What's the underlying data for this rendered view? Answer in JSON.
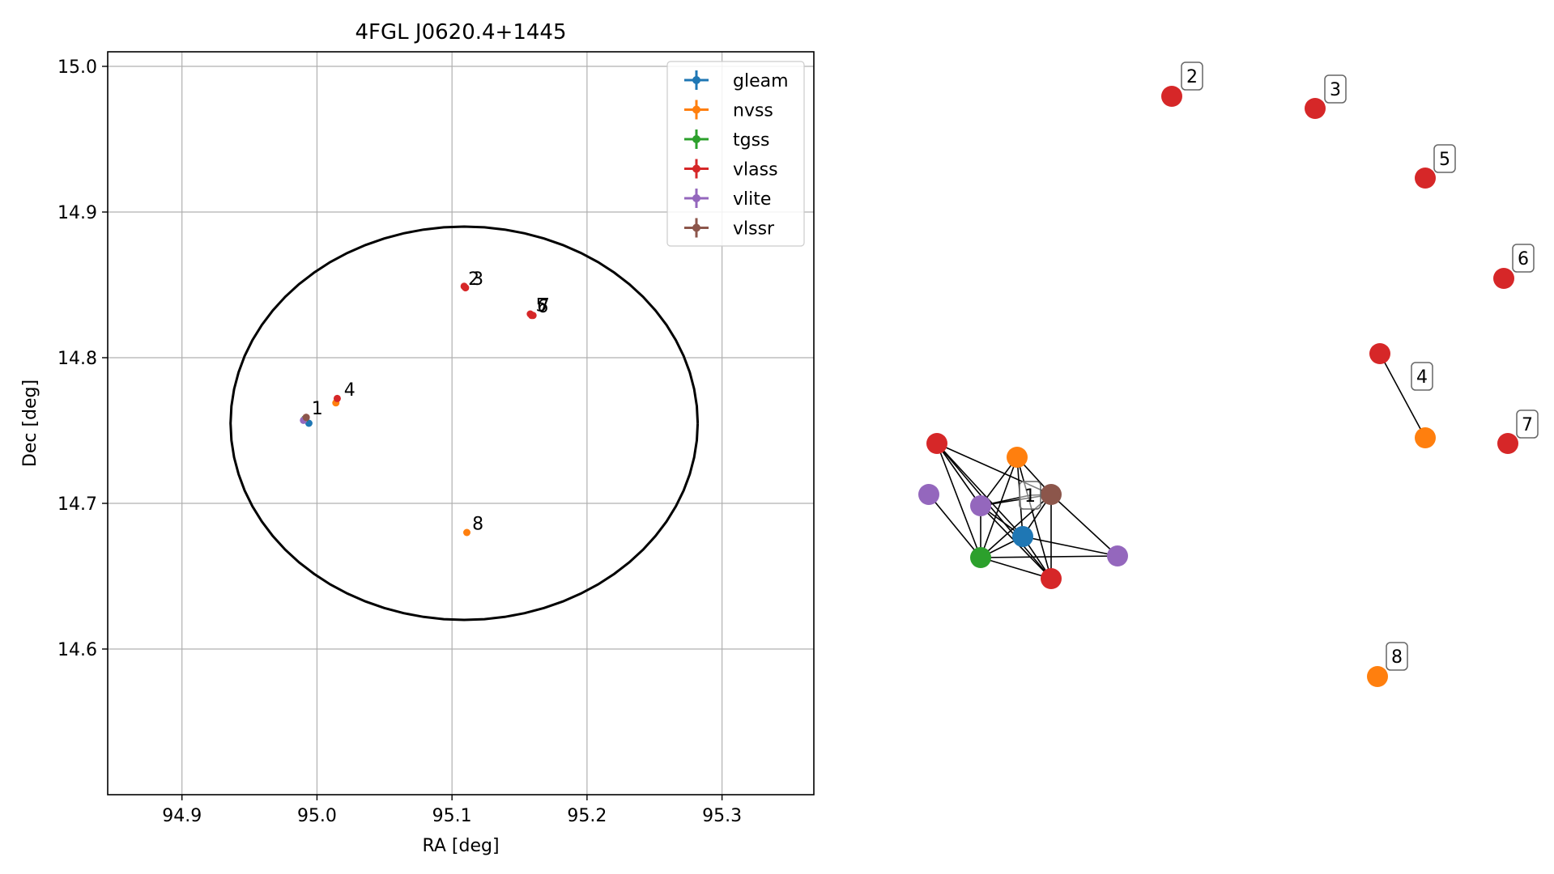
{
  "chart_data": [
    {
      "type": "scatter",
      "title": "4FGL J0620.4+1445",
      "xlabel": "RA [deg]",
      "ylabel": "Dec [deg]",
      "xlim": [
        94.845,
        95.368
      ],
      "ylim": [
        14.5,
        15.01
      ],
      "xticks": [
        94.9,
        95.0,
        95.1,
        95.2,
        95.3
      ],
      "yticks": [
        14.6,
        14.7,
        14.8,
        14.9,
        15.0
      ],
      "xtick_labels": [
        "94.9",
        "95.0",
        "95.1",
        "95.2",
        "95.3"
      ],
      "ytick_labels": [
        "14.6",
        "14.7",
        "14.8",
        "14.9",
        "15.0"
      ],
      "grid": true,
      "legend_position": "top-right",
      "ellipse": {
        "center_ra": 95.109,
        "center_dec": 14.755,
        "semi_ra": 0.173,
        "semi_dec": 0.135,
        "color": "#000000"
      },
      "series": [
        {
          "name": "gleam",
          "color": "#1f77b4",
          "points": [
            [
              94.994,
              14.755
            ]
          ]
        },
        {
          "name": "nvss",
          "color": "#ff7f0e",
          "points": [
            [
              95.014,
              14.769
            ],
            [
              95.111,
              14.68
            ]
          ]
        },
        {
          "name": "tgss",
          "color": "#2ca02c",
          "points": [
            [
              94.991,
              14.758
            ]
          ]
        },
        {
          "name": "vlass",
          "color": "#d62728",
          "points": [
            [
              95.015,
              14.772
            ],
            [
              95.109,
              14.849
            ],
            [
              95.11,
              14.848
            ],
            [
              95.158,
              14.83
            ],
            [
              95.159,
              14.829
            ],
            [
              95.16,
              14.829
            ],
            [
              94.992,
              14.759
            ]
          ]
        },
        {
          "name": "vlite",
          "color": "#9467bd",
          "points": [
            [
              94.99,
              14.757
            ]
          ]
        },
        {
          "name": "vlssr",
          "color": "#8c564b",
          "points": [
            [
              94.992,
              14.759
            ]
          ]
        }
      ],
      "labels": [
        {
          "text": "1",
          "ra": 94.996,
          "dec": 14.761
        },
        {
          "text": "2",
          "ra": 95.112,
          "dec": 14.85
        },
        {
          "text": "3",
          "ra": 95.115,
          "dec": 14.85
        },
        {
          "text": "4",
          "ra": 95.02,
          "dec": 14.774
        },
        {
          "text": "5",
          "ra": 95.162,
          "dec": 14.832
        },
        {
          "text": "6",
          "ra": 95.163,
          "dec": 14.831
        },
        {
          "text": "7",
          "ra": 95.164,
          "dec": 14.832
        },
        {
          "text": "8",
          "ra": 95.115,
          "dec": 14.682
        }
      ]
    },
    {
      "type": "network",
      "nodes": [
        {
          "id": "n_vlass1",
          "color": "#d62728"
        },
        {
          "id": "n_nvss1",
          "color": "#ff7f0e"
        },
        {
          "id": "n_vlite1",
          "color": "#9467bd"
        },
        {
          "id": "n_vlite2",
          "color": "#9467bd"
        },
        {
          "id": "n_vlssr",
          "color": "#8c564b"
        },
        {
          "id": "n_gleam",
          "color": "#1f77b4"
        },
        {
          "id": "n_tgss",
          "color": "#2ca02c"
        },
        {
          "id": "n_vlass2",
          "color": "#d62728"
        },
        {
          "id": "n_vlite3",
          "color": "#9467bd"
        },
        {
          "id": "n_label1",
          "color": "#ffffff",
          "label": "1"
        },
        {
          "id": "n2",
          "color": "#d62728",
          "label": "2"
        },
        {
          "id": "n3",
          "color": "#d62728",
          "label": "3"
        },
        {
          "id": "n5",
          "color": "#d62728",
          "label": "5"
        },
        {
          "id": "n6",
          "color": "#d62728",
          "label": "6"
        },
        {
          "id": "n4a",
          "color": "#d62728"
        },
        {
          "id": "n4b",
          "color": "#ff7f0e",
          "label": "4"
        },
        {
          "id": "n7",
          "color": "#d62728",
          "label": "7"
        },
        {
          "id": "n8",
          "color": "#ff7f0e",
          "label": "8"
        }
      ],
      "edges": [
        [
          "n_vlass1",
          "n_vlite2"
        ],
        [
          "n_vlass1",
          "n_vlssr"
        ],
        [
          "n_vlass1",
          "n_tgss"
        ],
        [
          "n_vlass1",
          "n_vlass2"
        ],
        [
          "n_vlass1",
          "n_gleam"
        ],
        [
          "n_nvss1",
          "n_vlite2"
        ],
        [
          "n_nvss1",
          "n_vlssr"
        ],
        [
          "n_nvss1",
          "n_gleam"
        ],
        [
          "n_nvss1",
          "n_tgss"
        ],
        [
          "n_nvss1",
          "n_vlass2"
        ],
        [
          "n_vlite2",
          "n_vlssr"
        ],
        [
          "n_vlite2",
          "n_gleam"
        ],
        [
          "n_vlite2",
          "n_tgss"
        ],
        [
          "n_vlite2",
          "n_vlass2"
        ],
        [
          "n_vlssr",
          "n_gleam"
        ],
        [
          "n_vlssr",
          "n_tgss"
        ],
        [
          "n_vlssr",
          "n_vlass2"
        ],
        [
          "n_vlssr",
          "n_vlite3"
        ],
        [
          "n_gleam",
          "n_tgss"
        ],
        [
          "n_gleam",
          "n_vlass2"
        ],
        [
          "n_gleam",
          "n_vlite3"
        ],
        [
          "n_tgss",
          "n_vlass2"
        ],
        [
          "n_tgss",
          "n_vlite3"
        ],
        [
          "n_vlite1",
          "n_tgss"
        ],
        [
          "n_label1",
          "n_vlite2"
        ],
        [
          "n_label1",
          "n_vlssr"
        ],
        [
          "n4a",
          "n4b"
        ]
      ]
    }
  ]
}
